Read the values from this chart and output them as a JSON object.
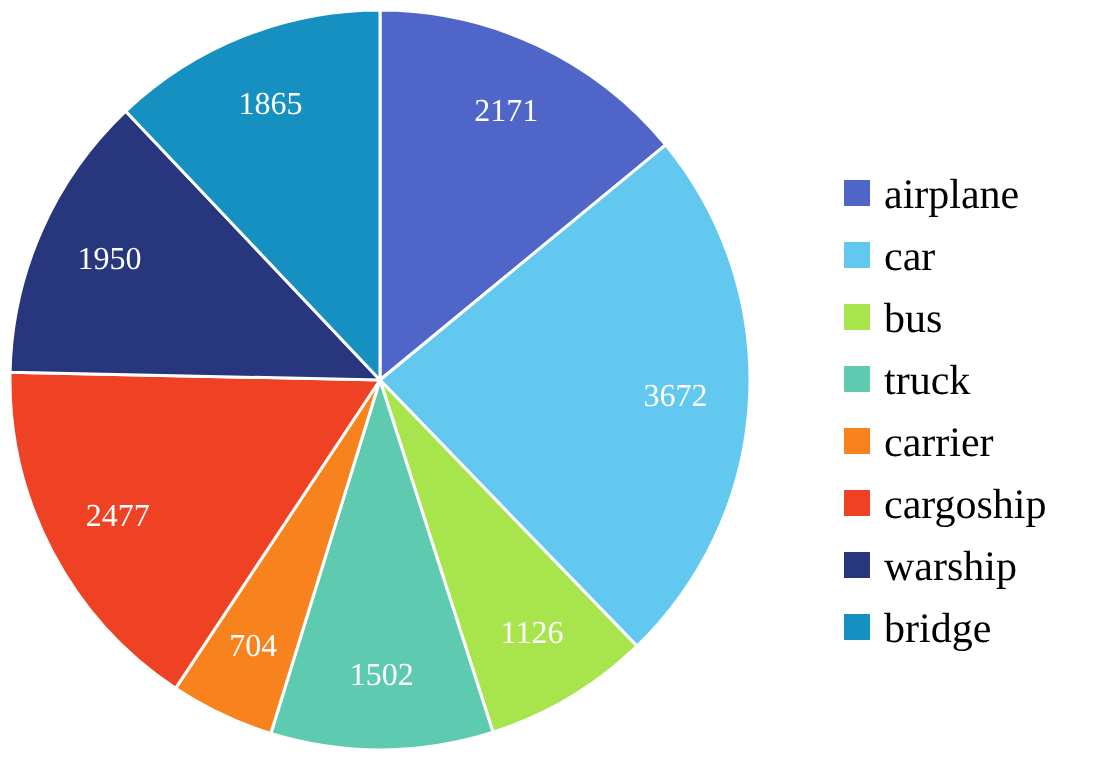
{
  "chart_data": {
    "type": "pie",
    "categories": [
      "airplane",
      "car",
      "bus",
      "truck",
      "carrier",
      "cargoship",
      "warship",
      "bridge"
    ],
    "values": [
      2171,
      3672,
      1126,
      1502,
      704,
      2477,
      1950,
      1865
    ],
    "colors": [
      "#4f66c8",
      "#62c8f0",
      "#a8e44c",
      "#5ecbb0",
      "#f7821e",
      "#ef4123",
      "#27367d",
      "#1590c0"
    ],
    "data_labels": true,
    "legend": "right"
  }
}
